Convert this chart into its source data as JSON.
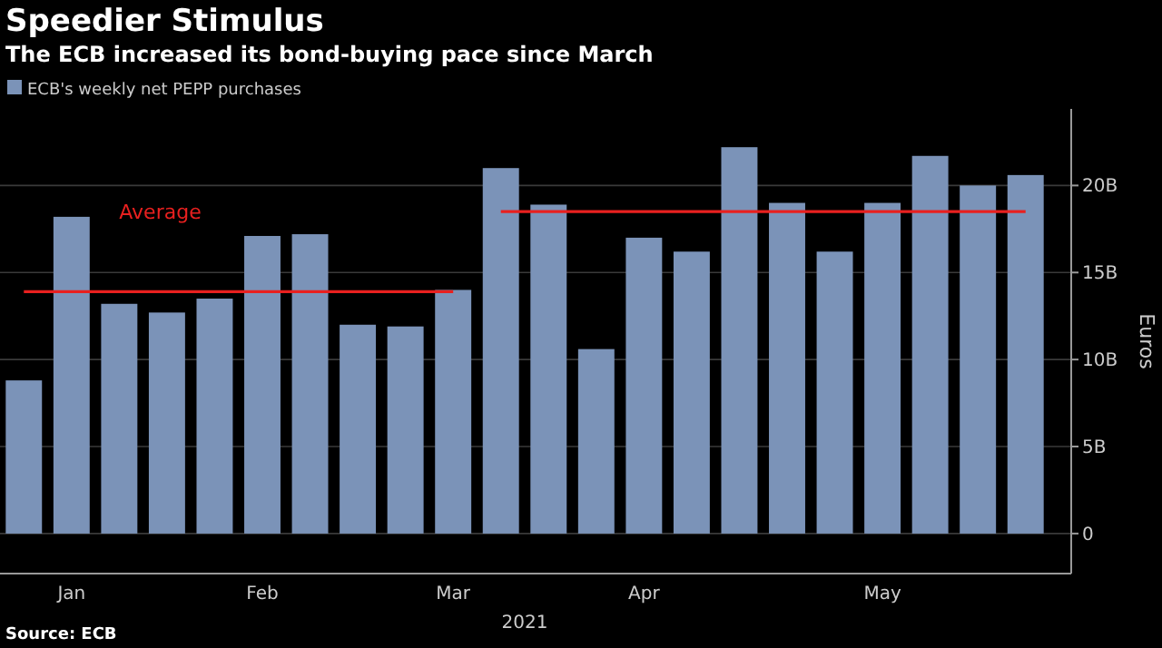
{
  "chart_data": {
    "type": "bar",
    "title": "Speedier Stimulus",
    "subtitle": "The ECB increased its bond-buying pace since March",
    "xlabel": "2021",
    "ylabel": "Euros",
    "categories": [
      null,
      "Jan",
      null,
      null,
      null,
      "Feb",
      null,
      null,
      null,
      "Mar",
      null,
      null,
      null,
      "Apr",
      null,
      null,
      null,
      null,
      "May",
      null,
      null,
      null
    ],
    "series": [
      {
        "name": "ECB's weekly net PEPP purchases",
        "color": "#7b93b8",
        "values": [
          8.8,
          18.2,
          13.2,
          12.7,
          13.5,
          17.1,
          17.2,
          12.0,
          11.9,
          14.0,
          21.0,
          18.9,
          10.6,
          17.0,
          16.2,
          22.2,
          19.0,
          16.2,
          19.0,
          21.7,
          20.0,
          20.6
        ]
      },
      {
        "type": "line",
        "name": "Average",
        "color": "#e8201f",
        "values": [
          13.9,
          13.9,
          13.9,
          13.9,
          13.9,
          13.9,
          13.9,
          13.9,
          13.9,
          13.9,
          18.5,
          18.5,
          18.5,
          18.5,
          18.5,
          18.5,
          18.5,
          18.5,
          18.5,
          18.5,
          18.5,
          18.5
        ]
      }
    ],
    "ylim": [
      -2.3,
      24.4
    ],
    "yticks": [
      {
        "value": 0,
        "label": "0"
      },
      {
        "value": 5,
        "label": "5B"
      },
      {
        "value": 10,
        "label": "10B"
      },
      {
        "value": 15,
        "label": "15B"
      },
      {
        "value": 20,
        "label": "20B"
      }
    ],
    "grid": "y",
    "legend": "top left",
    "annotations": [
      "Source: ECB"
    ]
  }
}
